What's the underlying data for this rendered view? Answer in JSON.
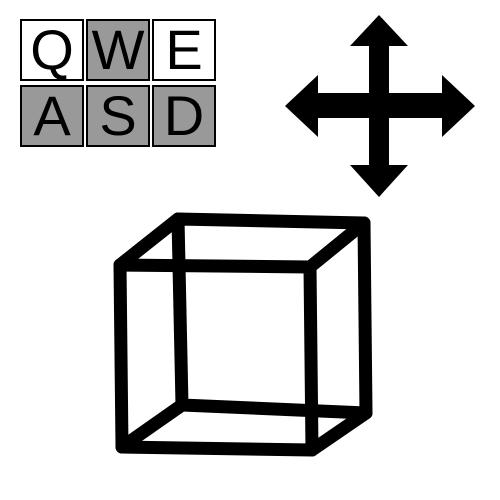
{
  "keys": [
    {
      "label": "Q",
      "pressed": false
    },
    {
      "label": "W",
      "pressed": true
    },
    {
      "label": "E",
      "pressed": false
    },
    {
      "label": "A",
      "pressed": true
    },
    {
      "label": "S",
      "pressed": true
    },
    {
      "label": "D",
      "pressed": true
    }
  ],
  "colors": {
    "key_pressed": "#999999",
    "key_normal": "#ffffff",
    "ink": "#000000"
  },
  "icons": {
    "move": "move-arrows-icon",
    "cube": "wireframe-cube-icon"
  }
}
